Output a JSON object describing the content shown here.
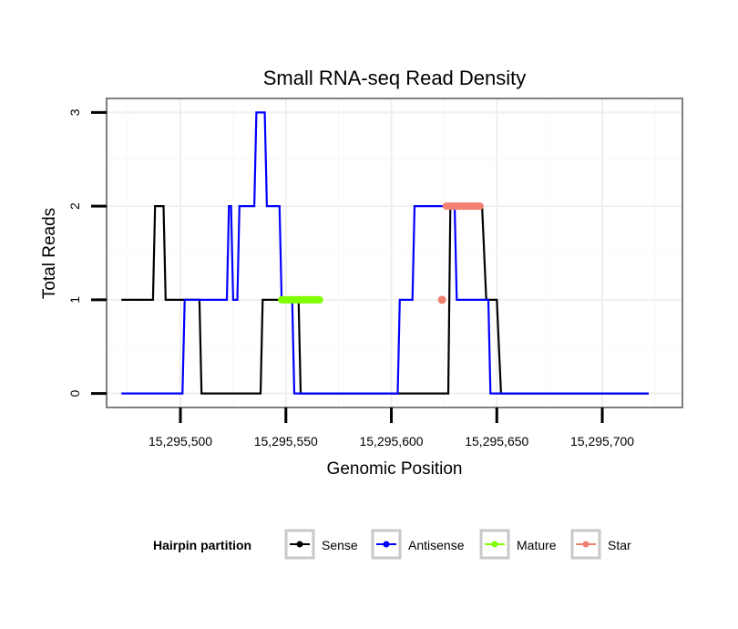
{
  "chart_data": {
    "type": "line",
    "title": "Small RNA-seq Read Density",
    "xlabel": "Genomic Position",
    "ylabel": "Total Reads",
    "xlim": [
      15295465,
      15295738
    ],
    "ylim": [
      -0.15,
      3.15
    ],
    "x_ticks": [
      15295500,
      15295550,
      15295600,
      15295650,
      15295700
    ],
    "x_tick_labels": [
      "15,295,500",
      "15,295,550",
      "15,295,600",
      "15,295,650",
      "15,295,700"
    ],
    "y_ticks": [
      0,
      1,
      2,
      3
    ],
    "y_tick_labels": [
      "0",
      "1",
      "2",
      "3"
    ],
    "grid": true,
    "legend": {
      "title": "Hairpin partition",
      "position": "bottom",
      "entries": [
        "Sense",
        "Antisense",
        "Mature",
        "Star"
      ]
    },
    "series": [
      {
        "name": "Sense",
        "color": "#000000",
        "style": "step-line",
        "x": [
          15295472,
          15295487,
          15295488,
          15295492,
          15295493,
          15295505,
          15295508,
          15295509,
          15295510,
          15295538,
          15295539,
          15295556,
          15295557,
          15295606,
          15295608,
          15295627,
          15295628,
          15295643,
          15295645,
          15295650,
          15295652,
          15295722
        ],
        "y": [
          1,
          1,
          2,
          2,
          1,
          1,
          1,
          1,
          0,
          0,
          1,
          1,
          0,
          0,
          0,
          0,
          2,
          2,
          1,
          1,
          0,
          0
        ]
      },
      {
        "name": "Antisense",
        "color": "#0000ff",
        "style": "step-line",
        "x": [
          15295472,
          15295501,
          15295502,
          15295518,
          15295519,
          15295522,
          15295523,
          15295524,
          15295525,
          15295527,
          15295528,
          15295535,
          15295536,
          15295538,
          15295539,
          15295540,
          15295541,
          15295547,
          15295548,
          15295553,
          15295554,
          15295603,
          15295604,
          15295610,
          15295611,
          15295630,
          15295631,
          15295646,
          15295647,
          15295722
        ],
        "y": [
          0,
          0,
          1,
          1,
          1,
          1,
          2,
          2,
          1,
          1,
          2,
          2,
          3,
          3,
          3,
          3,
          2,
          2,
          1,
          1,
          0,
          0,
          1,
          1,
          2,
          2,
          1,
          1,
          0,
          0
        ]
      },
      {
        "name": "Mature",
        "color": "#7fff00",
        "style": "thick-segment",
        "x": [
          15295548,
          15295566
        ],
        "y": [
          1,
          1
        ]
      },
      {
        "name": "Star",
        "color": "#f08070",
        "style": "thick-segment-with-point",
        "x": [
          15295626,
          15295642
        ],
        "y": [
          2,
          2
        ],
        "points": [
          {
            "x": 15295624,
            "y": 1
          }
        ]
      }
    ]
  }
}
